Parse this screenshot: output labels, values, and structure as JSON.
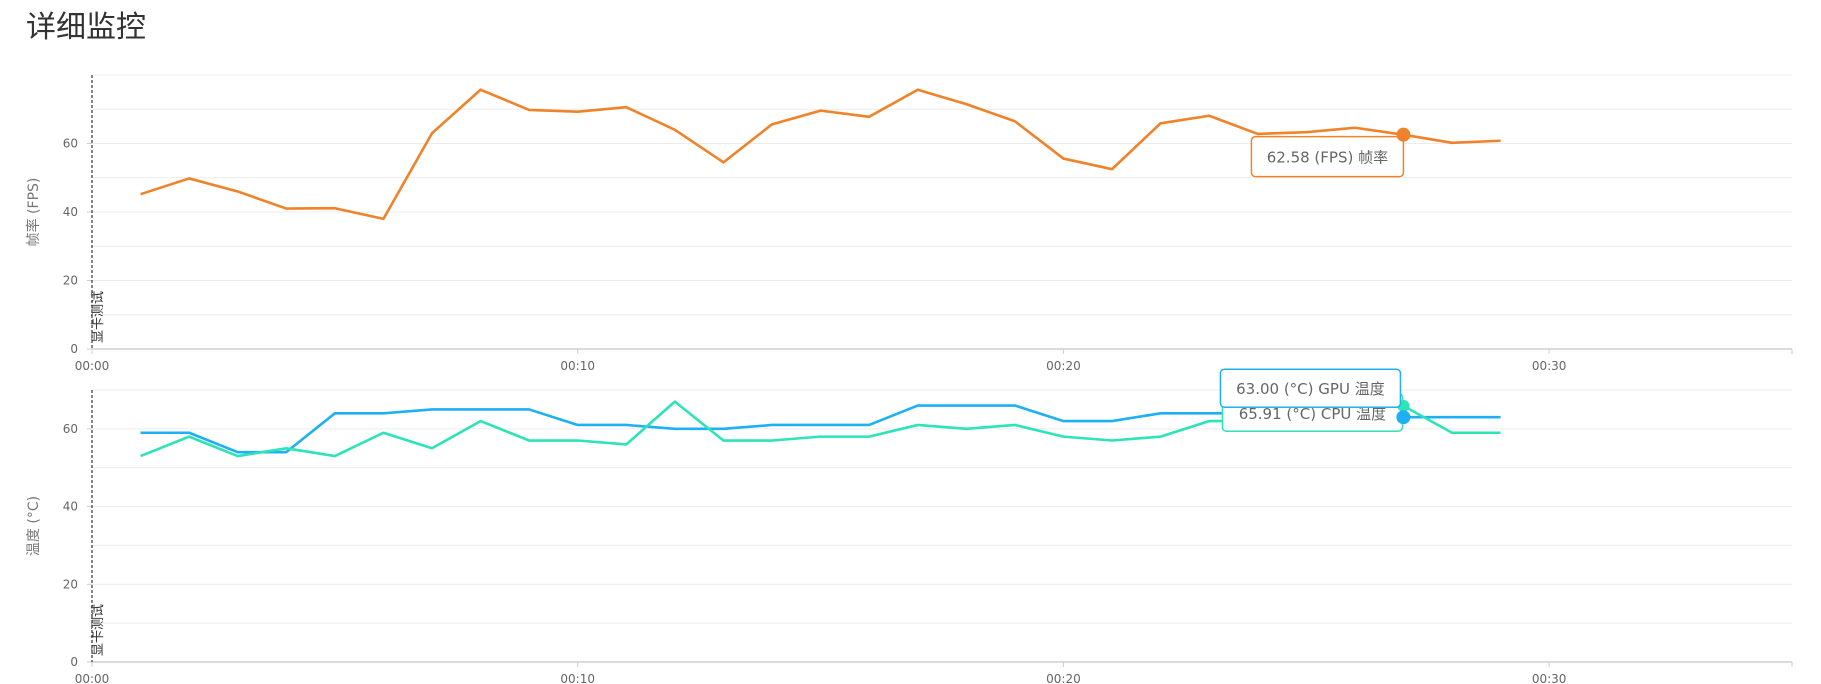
{
  "page": {
    "title": "详细监控"
  },
  "chart_data": [
    {
      "id": "fps",
      "type": "line",
      "ylabel": "帧率 (FPS)",
      "ylim": [
        0,
        80
      ],
      "yticks": [
        0,
        20,
        40,
        60
      ],
      "xlim": [
        0,
        35
      ],
      "xticks": [
        0,
        10,
        20,
        30
      ],
      "xtick_labels": [
        "00:00",
        "00:10",
        "00:20",
        "00:30"
      ],
      "grid": true,
      "marker": {
        "x": 0,
        "label": "显卡测试"
      },
      "series": [
        {
          "name": "帧率",
          "color": "#f08229",
          "x": [
            1,
            2,
            3,
            4,
            5,
            6,
            7,
            8,
            9,
            10,
            11,
            12,
            13,
            14,
            15,
            16,
            17,
            18,
            19,
            20,
            21,
            22,
            23,
            24,
            25,
            26,
            27,
            28,
            29
          ],
          "values": [
            45.2,
            49.8,
            46.0,
            41.0,
            41.1,
            38.0,
            63.0,
            75.7,
            69.8,
            69.3,
            70.6,
            64.0,
            54.5,
            65.6,
            69.6,
            67.8,
            75.7,
            71.5,
            66.5,
            55.6,
            52.5,
            65.9,
            68.1,
            62.8,
            63.3,
            64.6,
            62.58,
            60.2,
            60.8
          ]
        }
      ],
      "tooltip": {
        "x": 27,
        "text": "62.58 (FPS) 帧率",
        "color": "#f08229"
      }
    },
    {
      "id": "temp",
      "type": "line",
      "ylabel": "温度 (°C)",
      "ylim": [
        0,
        70
      ],
      "yticks": [
        0,
        20,
        40,
        60
      ],
      "xlim": [
        0,
        35
      ],
      "xticks": [
        0,
        10,
        20,
        30
      ],
      "xtick_labels": [
        "00:00",
        "00:10",
        "00:20",
        "00:30"
      ],
      "grid": true,
      "marker": {
        "x": 0,
        "label": "显卡测试"
      },
      "series": [
        {
          "name": "GPU 温度",
          "color": "#1eb0f4",
          "x": [
            1,
            2,
            3,
            4,
            5,
            6,
            7,
            8,
            9,
            10,
            11,
            12,
            13,
            14,
            15,
            16,
            17,
            18,
            19,
            20,
            21,
            22,
            23,
            24,
            25,
            26,
            27,
            28,
            29
          ],
          "values": [
            59,
            59,
            54,
            54,
            64,
            64,
            65,
            65,
            65,
            61,
            61,
            60,
            60,
            61,
            61,
            61,
            66,
            66,
            66,
            62,
            62,
            64,
            64,
            64,
            64,
            65,
            63,
            63,
            63
          ]
        },
        {
          "name": "CPU 温度",
          "color": "#2de3b8",
          "x": [
            1,
            2,
            3,
            4,
            5,
            6,
            7,
            8,
            9,
            10,
            11,
            12,
            13,
            14,
            15,
            16,
            17,
            18,
            19,
            20,
            21,
            22,
            23,
            24,
            25,
            26,
            27,
            28,
            29
          ],
          "values": [
            53,
            58,
            53,
            55,
            53,
            59,
            55,
            62,
            57,
            57,
            56,
            67,
            57,
            57,
            58,
            58,
            61,
            60,
            61,
            58,
            57,
            58,
            62,
            62,
            61,
            63,
            65.91,
            59,
            59
          ]
        }
      ],
      "tooltips": [
        {
          "x": 27,
          "text": "63.00 (°C) GPU 温度",
          "color": "#1eb0f4"
        },
        {
          "x": 27,
          "text": "65.91 (°C) CPU 温度",
          "color": "#2de3b8"
        }
      ]
    }
  ]
}
